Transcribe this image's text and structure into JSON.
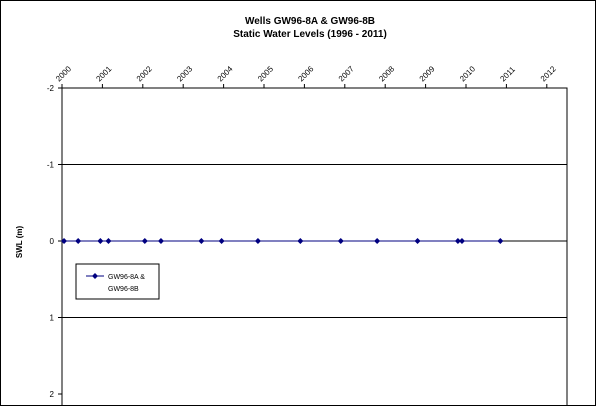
{
  "chart_data": {
    "type": "line",
    "title": [
      "Wells GW96-8A & GW96-8B",
      "Static Water Levels (1996 - 2011)"
    ],
    "xlabel": "",
    "ylabel": "SWL (m)",
    "x_ticks": [
      "2000",
      "2001",
      "2002",
      "2003",
      "2004",
      "2005",
      "2006",
      "2007",
      "2008",
      "2009",
      "2010",
      "2011",
      "2012"
    ],
    "xlim": [
      2000,
      2012.5
    ],
    "y_ticks": [
      -2,
      -1,
      0,
      1,
      2
    ],
    "ylim": [
      -2,
      2
    ],
    "y_reversed": true,
    "grid": "horizontal",
    "legend": {
      "position": "left",
      "lines": [
        "GW96-8A &",
        "GW96-8B"
      ]
    },
    "series": [
      {
        "name": "GW96-8A & GW96-8B",
        "color": "#000080",
        "marker": "diamond",
        "x": [
          2000.05,
          2000.4,
          2000.95,
          2001.15,
          2002.05,
          2002.45,
          2003.45,
          2003.95,
          2004.85,
          2005.9,
          2006.9,
          2007.8,
          2008.8,
          2009.8,
          2009.9,
          2010.85
        ],
        "y": [
          0,
          0,
          0,
          0,
          0,
          0,
          0,
          0,
          0,
          0,
          0,
          0,
          0,
          0,
          0,
          0
        ]
      }
    ]
  }
}
